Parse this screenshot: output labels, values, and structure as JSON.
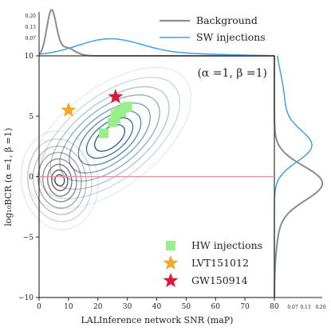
{
  "chart_data": {
    "type": "scatter",
    "xlabel": "LALInference network SNR (maP)",
    "ylabel": "log₁₀BCR (α =1, β =1)",
    "xlim": [
      0,
      80
    ],
    "ylim": [
      -10,
      10
    ],
    "x_ticks": [
      "0",
      "10",
      "20",
      "30",
      "40",
      "50",
      "60",
      "70",
      "80"
    ],
    "y_ticks": [
      "−10",
      "−5",
      "0",
      "5",
      "10"
    ],
    "annotation": "(α =1, β =1)",
    "top_marginal_ticks": [
      "0.07",
      "0.13",
      "0.20"
    ],
    "right_marginal_ticks": [
      "0.07",
      "0.13",
      "0.20"
    ],
    "reference_line_y": 0,
    "legend_top": [
      {
        "label": "Background",
        "color": "#8c8c8c"
      },
      {
        "label": "SW injections",
        "color": "#3fa1e6"
      }
    ],
    "legend_bottom": [
      {
        "label": "HW injections",
        "color": "#98f08c",
        "marker": "square"
      },
      {
        "label": "LVT151012",
        "color": "#f5a623",
        "marker": "star"
      },
      {
        "label": "GW150914",
        "color": "#d81b3c",
        "marker": "star"
      }
    ],
    "series": [
      {
        "name": "HW injections",
        "marker": "square",
        "color": "#98f08c",
        "points": [
          {
            "x": 22,
            "y": 3.6
          },
          {
            "x": 25,
            "y": 4.5
          },
          {
            "x": 26,
            "y": 4.8
          },
          {
            "x": 26,
            "y": 5.1
          },
          {
            "x": 27,
            "y": 5.4
          },
          {
            "x": 28,
            "y": 5.3
          },
          {
            "x": 29,
            "y": 5.7
          },
          {
            "x": 30,
            "y": 5.8
          }
        ]
      },
      {
        "name": "LVT151012",
        "marker": "star",
        "color": "#f5a623",
        "points": [
          {
            "x": 10,
            "y": 5.5
          }
        ]
      },
      {
        "name": "GW150914",
        "marker": "star",
        "color": "#d81b3c",
        "points": [
          {
            "x": 26,
            "y": 6.6
          }
        ]
      }
    ],
    "background_density": {
      "color": "#444444",
      "center": {
        "x": 7,
        "y": -0.3
      },
      "levels": 8
    },
    "sw_density": {
      "color": "#1f5d8a",
      "center": {
        "x": 24,
        "y": 3.2
      },
      "levels": 8
    }
  }
}
